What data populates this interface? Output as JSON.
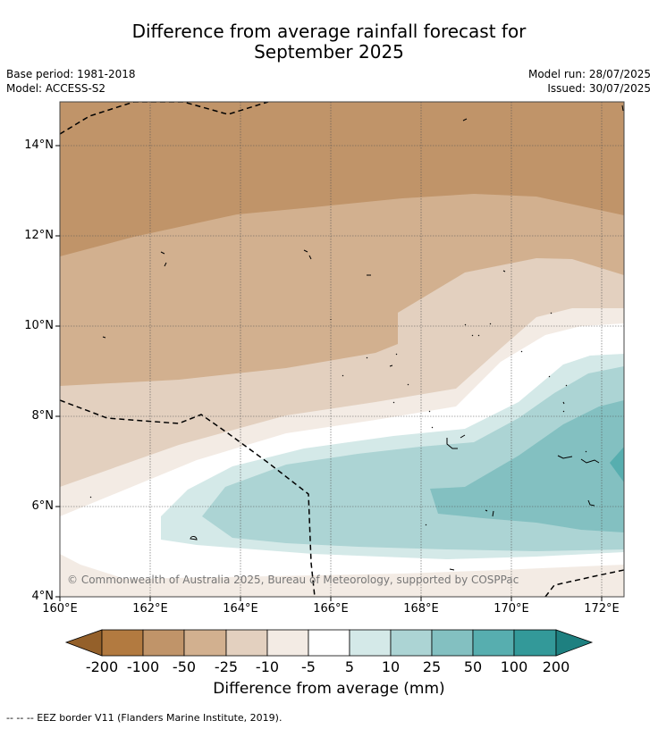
{
  "title_line1": "Difference from average rainfall forecast for",
  "title_line2": "September 2025",
  "base_period": "Base period: 1981-2018",
  "model": "Model: ACCESS-S2",
  "model_run": "Model run: 28/07/2025",
  "issued": "Issued: 30/07/2025",
  "copyright": "© Commonwealth of Australia 2025, Bureau of Meteorology, supported by COSPPac",
  "y_ticks": [
    "14°N",
    "12°N",
    "10°N",
    "8°N",
    "6°N",
    "4°N"
  ],
  "x_ticks": [
    "160°E",
    "162°E",
    "164°E",
    "166°E",
    "168°E",
    "170°E",
    "172°E"
  ],
  "colorbar": {
    "title": "Difference from average (mm)",
    "labels": [
      "-200",
      "-100",
      "-50",
      "-25",
      "-10",
      "-5",
      "5",
      "10",
      "25",
      "50",
      "100",
      "200"
    ],
    "colors": [
      "#94602a",
      "#b27a40",
      "#c09469",
      "#d2b08f",
      "#e3d0bf",
      "#f3ebe4",
      "#ffffff",
      "#d4e9e8",
      "#acd4d4",
      "#83c0c1",
      "#57aeaf",
      "#339999",
      "#1e8080"
    ]
  },
  "footnote": "--  --  -- EEZ border V11 (Flanders Marine Institute, 2019)."
}
